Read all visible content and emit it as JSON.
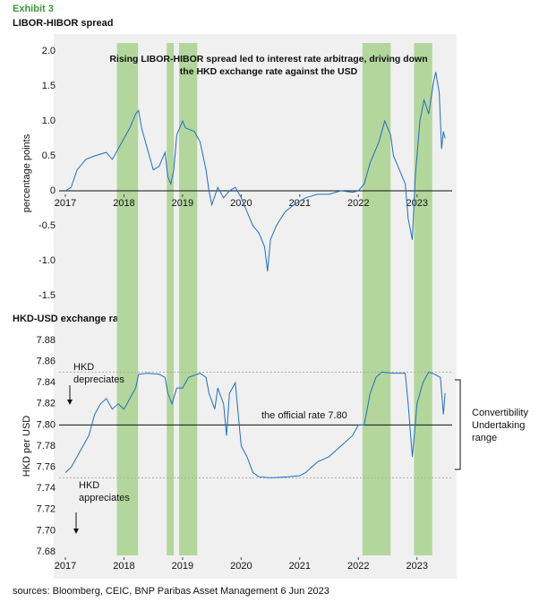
{
  "exhibit": "Exhibit 3",
  "source": "sources: Bloomberg, CEIC, BNP Paribas Asset Management  6 Jun 2023",
  "chart_data": [
    {
      "type": "line",
      "title": "LIBOR-HIBOR spread",
      "y_label": "percentage points",
      "annotation": [
        "Rising LIBOR-HIBOR spread led to interest rate arbitrage, driving down",
        "the HKD exchange rate against the USD"
      ],
      "x": [
        2017.0,
        2017.1,
        2017.2,
        2017.35,
        2017.5,
        2017.7,
        2017.8,
        2017.9,
        2018.0,
        2018.1,
        2018.2,
        2018.25,
        2018.3,
        2018.4,
        2018.5,
        2018.6,
        2018.7,
        2018.75,
        2018.8,
        2018.85,
        2018.9,
        2019.0,
        2019.05,
        2019.2,
        2019.3,
        2019.4,
        2019.45,
        2019.5,
        2019.6,
        2019.7,
        2019.8,
        2019.9,
        2020.0,
        2020.1,
        2020.2,
        2020.3,
        2020.4,
        2020.45,
        2020.5,
        2020.6,
        2020.75,
        2020.9,
        2021.0,
        2021.1,
        2021.3,
        2021.5,
        2021.7,
        2021.9,
        2022.0,
        2022.1,
        2022.2,
        2022.35,
        2022.45,
        2022.55,
        2022.6,
        2022.7,
        2022.8,
        2022.85,
        2022.92,
        2022.97,
        2023.05,
        2023.12,
        2023.2,
        2023.28,
        2023.32,
        2023.38,
        2023.42,
        2023.45,
        2023.48
      ],
      "series": [
        {
          "color": "#1f6fbf",
          "values": [
            0.0,
            0.05,
            0.3,
            0.45,
            0.5,
            0.55,
            0.45,
            0.6,
            0.75,
            0.9,
            1.1,
            1.15,
            0.9,
            0.6,
            0.3,
            0.35,
            0.55,
            0.2,
            0.1,
            0.3,
            0.8,
            1.0,
            0.9,
            0.85,
            0.7,
            0.3,
            0.0,
            -0.2,
            0.05,
            -0.1,
            0.0,
            0.05,
            -0.1,
            -0.3,
            -0.5,
            -0.6,
            -0.8,
            -1.15,
            -0.7,
            -0.5,
            -0.3,
            -0.2,
            -0.15,
            -0.1,
            -0.05,
            -0.05,
            0.0,
            -0.02,
            0.0,
            0.1,
            0.4,
            0.7,
            1.0,
            0.8,
            0.5,
            0.3,
            0.1,
            -0.4,
            -0.7,
            0.2,
            1.0,
            1.3,
            1.1,
            1.55,
            1.7,
            1.4,
            0.6,
            0.85,
            0.75
          ]
        }
      ],
      "xlim": [
        2017,
        2023.6
      ],
      "xticks": [
        2017,
        2018,
        2019,
        2020,
        2021,
        2022,
        2023
      ],
      "ylim": [
        -1.5,
        2.0
      ],
      "yticks": [
        {
          "value": 2,
          "label": "2.0"
        },
        1.5,
        {
          "value": 1,
          "label": "1.0"
        },
        0.5,
        0,
        -0.5,
        {
          "value": -1,
          "label": "-1.0"
        },
        -1.5
      ],
      "reference_lines": [
        {
          "value": 0,
          "style": "solid"
        }
      ],
      "shaded_periods": [
        [
          2017.88,
          2018.24
        ],
        [
          2018.73,
          2018.85
        ],
        [
          2018.94,
          2019.25
        ],
        [
          2022.07,
          2022.55
        ],
        [
          2022.95,
          2023.26
        ]
      ],
      "shade_color": "#b3d69c"
    },
    {
      "type": "line",
      "title": "HKD-USD exchange rate",
      "y_label": "HKD per USD",
      "annotations": {
        "depreciates": [
          "HKD",
          "depreciates"
        ],
        "appreciates": [
          "HKD",
          "appreciates"
        ],
        "official": "the official rate 7.80",
        "range": [
          "Convertibility",
          "Undertaking",
          "range"
        ]
      },
      "x": [
        2017.0,
        2017.1,
        2017.2,
        2017.3,
        2017.4,
        2017.5,
        2017.6,
        2017.7,
        2017.8,
        2017.9,
        2018.0,
        2018.1,
        2018.2,
        2018.25,
        2018.4,
        2018.6,
        2018.7,
        2018.75,
        2018.82,
        2018.9,
        2019.0,
        2019.1,
        2019.3,
        2019.4,
        2019.45,
        2019.55,
        2019.6,
        2019.7,
        2019.75,
        2019.8,
        2019.9,
        2020.0,
        2020.1,
        2020.2,
        2020.3,
        2020.5,
        2020.8,
        2021.0,
        2021.1,
        2021.3,
        2021.5,
        2021.7,
        2021.9,
        2022.0,
        2022.1,
        2022.2,
        2022.3,
        2022.4,
        2022.6,
        2022.8,
        2022.85,
        2022.92,
        2022.97,
        2023.0,
        2023.1,
        2023.2,
        2023.3,
        2023.4,
        2023.45,
        2023.48
      ],
      "series": [
        {
          "color": "#1f6fbf",
          "values": [
            7.755,
            7.76,
            7.77,
            7.78,
            7.79,
            7.81,
            7.82,
            7.825,
            7.815,
            7.82,
            7.815,
            7.825,
            7.835,
            7.848,
            7.849,
            7.848,
            7.845,
            7.83,
            7.82,
            7.835,
            7.835,
            7.845,
            7.849,
            7.845,
            7.83,
            7.815,
            7.835,
            7.82,
            7.79,
            7.83,
            7.84,
            7.78,
            7.77,
            7.755,
            7.751,
            7.75,
            7.751,
            7.752,
            7.755,
            7.765,
            7.77,
            7.78,
            7.79,
            7.8,
            7.8,
            7.83,
            7.845,
            7.85,
            7.849,
            7.849,
            7.82,
            7.77,
            7.8,
            7.82,
            7.84,
            7.85,
            7.848,
            7.845,
            7.81,
            7.83
          ]
        }
      ],
      "xlim": [
        2017,
        2023.6
      ],
      "xticks": [
        2017,
        2018,
        2019,
        2020,
        2021,
        2022,
        2023
      ],
      "ylim": [
        7.68,
        7.88
      ],
      "yticks": [
        7.88,
        7.86,
        7.84,
        7.82,
        {
          "value": 7.8,
          "label": "7.80"
        },
        7.78,
        7.76,
        7.74,
        7.72,
        {
          "value": 7.7,
          "label": "7.70"
        },
        7.68
      ],
      "reference_lines": [
        {
          "value": 7.85,
          "style": "dashed"
        },
        {
          "value": 7.8,
          "style": "solid"
        },
        {
          "value": 7.75,
          "style": "dashed"
        }
      ]
    }
  ]
}
